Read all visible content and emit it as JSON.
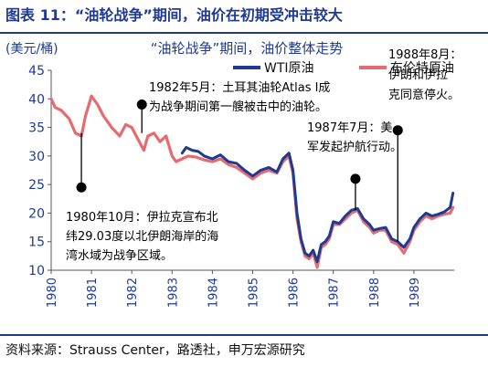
{
  "header": {
    "title": "图表 11：“油轮战争”期间，油价在初期受冲击较大"
  },
  "footer": {
    "source": "资料来源：Strauss Center，路透社，申万宏源研究"
  },
  "colors": {
    "wti": "#1f3a93",
    "brent": "#e56b6f",
    "axis_text": "#1f3a93",
    "annotation": "#000000"
  },
  "chart_data": {
    "type": "line",
    "title": "“油轮战争”期间，油价整体走势",
    "ylabel": "(美元/桶)",
    "xlabel": "",
    "xlim": [
      1980,
      1990
    ],
    "ylim": [
      10,
      45
    ],
    "x_ticks": [
      "1980",
      "1981",
      "1982",
      "1983",
      "1984",
      "1985",
      "1986",
      "1987",
      "1988",
      "1989"
    ],
    "y_ticks": [
      10,
      15,
      20,
      25,
      30,
      35,
      40,
      45
    ],
    "legend_placement": "top-right",
    "grid": false,
    "series": [
      {
        "name": "WTI原油",
        "color": "#1f3a93",
        "x": [
          1983.25,
          1983.35,
          1983.5,
          1983.65,
          1983.8,
          1984.0,
          1984.2,
          1984.4,
          1984.6,
          1984.8,
          1985.0,
          1985.2,
          1985.4,
          1985.6,
          1985.75,
          1985.9,
          1986.0,
          1986.1,
          1986.2,
          1986.3,
          1986.4,
          1986.5,
          1986.6,
          1986.7,
          1986.8,
          1986.9,
          1987.0,
          1987.15,
          1987.3,
          1987.45,
          1987.6,
          1987.75,
          1987.9,
          1988.0,
          1988.15,
          1988.3,
          1988.45,
          1988.6,
          1988.75,
          1988.9,
          1989.0,
          1989.15,
          1989.3,
          1989.45,
          1989.6,
          1989.75,
          1989.9,
          1989.97
        ],
        "y": [
          30.5,
          31.5,
          31.0,
          30.8,
          30.0,
          29.5,
          30.2,
          29.0,
          28.7,
          27.5,
          26.5,
          27.5,
          28.0,
          27.2,
          29.5,
          30.5,
          27.5,
          20.0,
          15.5,
          13.0,
          12.5,
          13.5,
          11.5,
          14.5,
          15.0,
          16.0,
          18.5,
          18.2,
          19.5,
          20.5,
          20.8,
          19.0,
          18.0,
          17.0,
          17.3,
          17.5,
          15.5,
          15.0,
          14.0,
          15.5,
          17.5,
          19.0,
          20.0,
          19.5,
          19.8,
          20.2,
          21.0,
          23.5
        ]
      },
      {
        "name": "布伦特原油",
        "color": "#e56b6f",
        "x": [
          1980.0,
          1980.1,
          1980.25,
          1980.45,
          1980.6,
          1980.75,
          1980.85,
          1981.0,
          1981.15,
          1981.3,
          1981.5,
          1981.7,
          1981.85,
          1982.0,
          1982.15,
          1982.3,
          1982.4,
          1982.55,
          1982.7,
          1982.85,
          1983.0,
          1983.1,
          1983.25,
          1983.4,
          1983.6,
          1983.8,
          1984.0,
          1984.2,
          1984.4,
          1984.6,
          1984.8,
          1985.0,
          1985.2,
          1985.4,
          1985.6,
          1985.75,
          1985.9,
          1986.0,
          1986.1,
          1986.2,
          1986.3,
          1986.4,
          1986.5,
          1986.6,
          1986.7,
          1986.8,
          1986.9,
          1987.0,
          1987.15,
          1987.3,
          1987.45,
          1987.6,
          1987.75,
          1987.9,
          1988.0,
          1988.15,
          1988.3,
          1988.45,
          1988.6,
          1988.75,
          1988.9,
          1989.0,
          1989.15,
          1989.3,
          1989.45,
          1989.6,
          1989.75,
          1989.9,
          1989.97
        ],
        "y": [
          40.0,
          38.5,
          38.0,
          36.5,
          34.0,
          33.5,
          37.0,
          40.5,
          39.0,
          37.0,
          35.0,
          33.5,
          35.5,
          35.0,
          33.0,
          31.0,
          33.5,
          34.0,
          32.5,
          33.5,
          30.0,
          29.0,
          29.5,
          30.0,
          29.8,
          29.3,
          29.0,
          29.5,
          28.5,
          28.0,
          27.0,
          26.0,
          27.0,
          27.5,
          27.0,
          29.0,
          30.0,
          27.0,
          19.0,
          15.0,
          12.5,
          12.0,
          13.0,
          10.5,
          14.0,
          14.5,
          15.5,
          18.0,
          18.0,
          19.0,
          20.0,
          20.5,
          18.5,
          17.5,
          16.5,
          17.0,
          17.0,
          15.0,
          14.5,
          13.0,
          15.0,
          17.0,
          18.5,
          19.5,
          19.0,
          19.5,
          19.8,
          20.0,
          21.0
        ]
      }
    ],
    "annotations": [
      {
        "text_lines": [
          "1980年10月：伊拉克宣布北",
          "纬29.03度以北伊朗海岸的海",
          "湾水域为战争区域。"
        ],
        "x": 1980.75,
        "y_from": 34.0,
        "y_to": 24.5
      },
      {
        "text_lines": [
          "1982年5月：土耳其油轮Atlas I成",
          "为战争期间第一艘被击中的油轮。"
        ],
        "x": 1982.25,
        "y_from": 34.0,
        "y_to": 39.0
      },
      {
        "text_lines": [
          "1987年7月：美",
          "军发起护航行动。"
        ],
        "x": 1987.55,
        "y_from": 20.5,
        "y_to": 26.0
      },
      {
        "text_lines": [
          "1988年8月：",
          "伊朗和伊拉",
          "克同意停火。"
        ],
        "x": 1988.6,
        "y_from": 15.0,
        "y_to": 34.5
      }
    ]
  }
}
